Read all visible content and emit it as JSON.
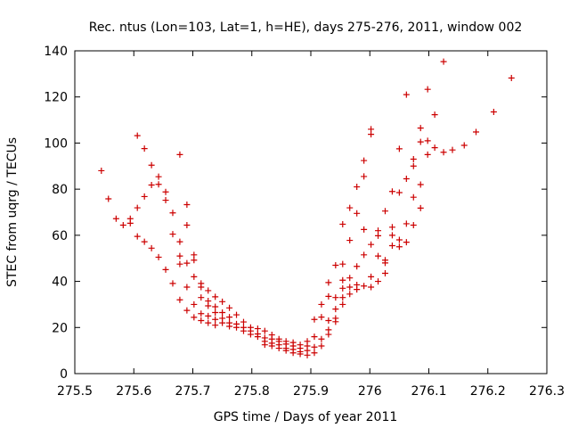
{
  "chart_data": {
    "type": "scatter",
    "title": "Rec. ntus (Lon=103, Lat=1, h=HE), days 275-276, 2011, window 002",
    "xlabel": "GPS time / Days of year 2011",
    "ylabel": "STEC from uqrg / TECUs",
    "xlim": [
      275.5,
      276.3
    ],
    "ylim": [
      0,
      140
    ],
    "xticks": [
      275.5,
      275.6,
      275.7,
      275.8,
      275.9,
      276.0,
      276.1,
      276.2,
      276.3
    ],
    "xtick_labels": [
      "275.5",
      "275.6",
      "275.7",
      "275.8",
      "275.9",
      "276",
      "276.1",
      "276.2",
      "276.3"
    ],
    "yticks": [
      0,
      20,
      40,
      60,
      80,
      100,
      120,
      140
    ],
    "ytick_labels": [
      "0",
      "20",
      "40",
      "60",
      "80",
      "100",
      "120",
      "140"
    ],
    "grid": false,
    "legend": "none",
    "marker": "+",
    "marker_color": "#cc0000",
    "points": [
      [
        275.545,
        88.0
      ],
      [
        275.557,
        75.8
      ],
      [
        275.57,
        67.2
      ],
      [
        275.582,
        64.4
      ],
      [
        275.594,
        65.2
      ],
      [
        275.594,
        67.2
      ],
      [
        275.606,
        103.2
      ],
      [
        275.606,
        71.9
      ],
      [
        275.606,
        59.5
      ],
      [
        275.618,
        97.6
      ],
      [
        275.618,
        76.8
      ],
      [
        275.618,
        57.2
      ],
      [
        275.63,
        90.4
      ],
      [
        275.63,
        81.8
      ],
      [
        275.63,
        54.4
      ],
      [
        275.642,
        85.4
      ],
      [
        275.642,
        82.1
      ],
      [
        275.642,
        50.5
      ],
      [
        275.654,
        78.8
      ],
      [
        275.654,
        75.2
      ],
      [
        275.654,
        45.1
      ],
      [
        275.666,
        69.7
      ],
      [
        275.666,
        60.5
      ],
      [
        275.666,
        39.1
      ],
      [
        275.678,
        95.0
      ],
      [
        275.678,
        57.2
      ],
      [
        275.678,
        51.0
      ],
      [
        275.678,
        47.5
      ],
      [
        275.678,
        32.0
      ],
      [
        275.69,
        73.3
      ],
      [
        275.69,
        64.4
      ],
      [
        275.69,
        47.9
      ],
      [
        275.69,
        37.5
      ],
      [
        275.69,
        27.4
      ],
      [
        275.702,
        51.5
      ],
      [
        275.702,
        49.2
      ],
      [
        275.702,
        42.0
      ],
      [
        275.702,
        30.0
      ],
      [
        275.702,
        24.4
      ],
      [
        275.714,
        39.1
      ],
      [
        275.714,
        37.5
      ],
      [
        275.714,
        33.0
      ],
      [
        275.714,
        26.0
      ],
      [
        275.714,
        23.0
      ],
      [
        275.726,
        36.0
      ],
      [
        275.726,
        31.5
      ],
      [
        275.726,
        29.4
      ],
      [
        275.726,
        25.0
      ],
      [
        275.726,
        22.0
      ],
      [
        275.738,
        33.3
      ],
      [
        275.738,
        29.0
      ],
      [
        275.738,
        26.5
      ],
      [
        275.738,
        23.5
      ],
      [
        275.738,
        21.0
      ],
      [
        275.75,
        31.2
      ],
      [
        275.75,
        26.5
      ],
      [
        275.75,
        24.0
      ],
      [
        275.75,
        22.0
      ],
      [
        275.762,
        28.5
      ],
      [
        275.762,
        24.5
      ],
      [
        275.762,
        22.0
      ],
      [
        275.762,
        20.5
      ],
      [
        275.774,
        25.5
      ],
      [
        275.774,
        21.5
      ],
      [
        275.774,
        20.0
      ],
      [
        275.786,
        22.4
      ],
      [
        275.786,
        20.0
      ],
      [
        275.786,
        18.5
      ],
      [
        275.798,
        20.0
      ],
      [
        275.798,
        18.5
      ],
      [
        275.798,
        17.0
      ],
      [
        275.81,
        19.5
      ],
      [
        275.81,
        17.2
      ],
      [
        275.81,
        16.0
      ],
      [
        275.822,
        18.5
      ],
      [
        275.822,
        15.5
      ],
      [
        275.822,
        14.0
      ],
      [
        275.822,
        12.5
      ],
      [
        275.834,
        16.8
      ],
      [
        275.834,
        15.0
      ],
      [
        275.834,
        13.2
      ],
      [
        275.834,
        12.0
      ],
      [
        275.846,
        15.0
      ],
      [
        275.846,
        14.0
      ],
      [
        275.846,
        12.5
      ],
      [
        275.846,
        11.0
      ],
      [
        275.858,
        14.0
      ],
      [
        275.858,
        12.8
      ],
      [
        275.858,
        11.0
      ],
      [
        275.858,
        10.0
      ],
      [
        275.87,
        13.5
      ],
      [
        275.87,
        12.0
      ],
      [
        275.87,
        10.5
      ],
      [
        275.87,
        9.0
      ],
      [
        275.882,
        12.5
      ],
      [
        275.882,
        11.0
      ],
      [
        275.882,
        9.5
      ],
      [
        275.882,
        8.5
      ],
      [
        275.894,
        14.0
      ],
      [
        275.894,
        12.0
      ],
      [
        275.894,
        10.0
      ],
      [
        275.894,
        8.0
      ],
      [
        275.906,
        23.5
      ],
      [
        275.906,
        16.0
      ],
      [
        275.906,
        11.5
      ],
      [
        275.906,
        9.0
      ],
      [
        275.918,
        30.0
      ],
      [
        275.918,
        24.5
      ],
      [
        275.918,
        15.0
      ],
      [
        275.918,
        12.0
      ],
      [
        275.93,
        39.5
      ],
      [
        275.93,
        33.5
      ],
      [
        275.93,
        23.0
      ],
      [
        275.93,
        19.0
      ],
      [
        275.93,
        17.0
      ],
      [
        275.942,
        47.0
      ],
      [
        275.942,
        33.0
      ],
      [
        275.942,
        28.0
      ],
      [
        275.942,
        24.0
      ],
      [
        275.942,
        22.5
      ],
      [
        275.954,
        64.8
      ],
      [
        275.954,
        47.5
      ],
      [
        275.954,
        40.5
      ],
      [
        275.954,
        37.0
      ],
      [
        275.954,
        33.0
      ],
      [
        275.954,
        30.0
      ],
      [
        275.966,
        71.9
      ],
      [
        275.966,
        57.8
      ],
      [
        275.966,
        41.5
      ],
      [
        275.966,
        37.5
      ],
      [
        275.966,
        34.5
      ],
      [
        275.978,
        81.0
      ],
      [
        275.978,
        69.5
      ],
      [
        275.978,
        46.5
      ],
      [
        275.978,
        38.5
      ],
      [
        275.978,
        36.5
      ],
      [
        275.99,
        92.4
      ],
      [
        275.99,
        85.5
      ],
      [
        275.99,
        62.5
      ],
      [
        275.99,
        51.5
      ],
      [
        275.99,
        38.0
      ],
      [
        276.002,
        106.0
      ],
      [
        276.002,
        103.8
      ],
      [
        276.002,
        56.0
      ],
      [
        276.002,
        42.0
      ],
      [
        276.002,
        37.5
      ],
      [
        276.014,
        62.0
      ],
      [
        276.014,
        59.8
      ],
      [
        276.014,
        51.0
      ],
      [
        276.014,
        40.0
      ],
      [
        276.026,
        70.5
      ],
      [
        276.026,
        49.2
      ],
      [
        276.026,
        48.0
      ],
      [
        276.026,
        43.5
      ],
      [
        276.038,
        79.0
      ],
      [
        276.038,
        63.5
      ],
      [
        276.038,
        60.0
      ],
      [
        276.038,
        55.5
      ],
      [
        276.05,
        97.5
      ],
      [
        276.05,
        78.5
      ],
      [
        276.05,
        58.0
      ],
      [
        276.05,
        55.0
      ],
      [
        276.062,
        121.0
      ],
      [
        276.062,
        84.5
      ],
      [
        276.062,
        65.0
      ],
      [
        276.062,
        57.0
      ],
      [
        276.074,
        93.0
      ],
      [
        276.074,
        90.0
      ],
      [
        276.074,
        76.5
      ],
      [
        276.074,
        64.4
      ],
      [
        276.086,
        106.5
      ],
      [
        276.086,
        100.5
      ],
      [
        276.086,
        82.0
      ],
      [
        276.086,
        71.8
      ],
      [
        276.098,
        123.3
      ],
      [
        276.098,
        101.0
      ],
      [
        276.098,
        95.0
      ],
      [
        276.11,
        112.3
      ],
      [
        276.11,
        98.0
      ],
      [
        276.125,
        135.3
      ],
      [
        276.125,
        96.0
      ],
      [
        276.14,
        97.0
      ],
      [
        276.16,
        99.0
      ],
      [
        276.18,
        104.8
      ],
      [
        276.21,
        113.5
      ],
      [
        276.24,
        128.2
      ]
    ]
  }
}
